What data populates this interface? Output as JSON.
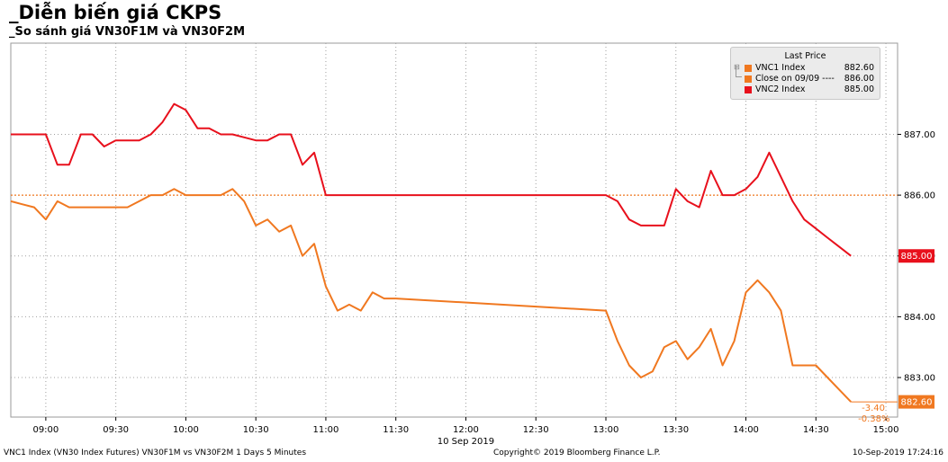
{
  "title": "_Diễn biến giá CKPS",
  "subtitle": "_So sánh giá VN30F1M và VN30F2M",
  "legend": {
    "header": "Last Price",
    "items": [
      {
        "label": "VNC1 Index",
        "value": "882.60",
        "color": "#f07820"
      },
      {
        "label": "Close on 09/09 ---- ",
        "value": "886.00",
        "color": "#f07820"
      },
      {
        "label": "VNC2 Index",
        "value": "885.00",
        "color": "#e8101c"
      }
    ]
  },
  "footer": {
    "left": "VNC1 Index (VN30 Index Futures) VN30F1M vs VN30F2M 1 Days 5 Minutes",
    "center": "Copyright© 2019 Bloomberg Finance L.P.",
    "right": "10-Sep-2019 17:24:16"
  },
  "chart_data": {
    "type": "line",
    "x_date": "10 Sep 2019",
    "x_tick_labels": [
      "09:00",
      "09:30",
      "10:00",
      "10:30",
      "11:00",
      "11:30",
      "12:00",
      "12:30",
      "13:00",
      "13:30",
      "14:00",
      "14:30",
      "15:00"
    ],
    "y_tick_labels": [
      "883.00",
      "884.00",
      "885.00",
      "886.00",
      "887.00"
    ],
    "y_ticks": [
      883,
      884,
      885,
      886,
      887
    ],
    "xlim": [
      "08:45",
      "15:05"
    ],
    "ylim": [
      882.35,
      888.5
    ],
    "grid": true,
    "reference_line": {
      "label": "Close on 09/09",
      "value": 886.0,
      "color": "#f07820"
    },
    "last_price_labels": [
      {
        "series": "VNC2 Index",
        "text": "885.00",
        "value": 885.0,
        "color": "#e8101c"
      },
      {
        "series": "VNC1 Index",
        "text": "882.60",
        "value": 882.6,
        "color": "#f07820"
      }
    ],
    "change_annotation": {
      "change": "-3.40",
      "percent": "-0.38%"
    },
    "series": [
      {
        "name": "VNC2 Index",
        "color": "#e8101c",
        "points": [
          [
            "08:45",
            887.0
          ],
          [
            "08:50",
            887.0
          ],
          [
            "08:55",
            887.0
          ],
          [
            "09:00",
            887.0
          ],
          [
            "09:05",
            886.5
          ],
          [
            "09:10",
            886.5
          ],
          [
            "09:15",
            887.0
          ],
          [
            "09:20",
            887.0
          ],
          [
            "09:25",
            886.8
          ],
          [
            "09:30",
            886.9
          ],
          [
            "09:35",
            886.9
          ],
          [
            "09:40",
            886.9
          ],
          [
            "09:45",
            887.0
          ],
          [
            "09:50",
            887.2
          ],
          [
            "09:55",
            887.5
          ],
          [
            "10:00",
            887.4
          ],
          [
            "10:05",
            887.1
          ],
          [
            "10:10",
            887.1
          ],
          [
            "10:15",
            887.0
          ],
          [
            "10:20",
            887.0
          ],
          [
            "10:25",
            886.95
          ],
          [
            "10:30",
            886.9
          ],
          [
            "10:35",
            886.9
          ],
          [
            "10:40",
            887.0
          ],
          [
            "10:45",
            887.0
          ],
          [
            "10:50",
            886.5
          ],
          [
            "10:55",
            886.7
          ],
          [
            "11:00",
            886.0
          ],
          [
            "11:30",
            886.0
          ],
          [
            "13:00",
            886.0
          ],
          [
            "13:05",
            885.9
          ],
          [
            "13:10",
            885.6
          ],
          [
            "13:15",
            885.5
          ],
          [
            "13:20",
            885.5
          ],
          [
            "13:25",
            885.5
          ],
          [
            "13:30",
            886.1
          ],
          [
            "13:35",
            885.9
          ],
          [
            "13:40",
            885.8
          ],
          [
            "13:45",
            886.4
          ],
          [
            "13:50",
            886.0
          ],
          [
            "13:55",
            886.0
          ],
          [
            "14:00",
            886.1
          ],
          [
            "14:05",
            886.3
          ],
          [
            "14:10",
            886.7
          ],
          [
            "14:15",
            886.3
          ],
          [
            "14:20",
            885.9
          ],
          [
            "14:25",
            885.6
          ],
          [
            "14:30",
            885.45
          ],
          [
            "14:35",
            885.3
          ],
          [
            "14:40",
            885.15
          ],
          [
            "14:45",
            885.0
          ]
        ]
      },
      {
        "name": "VNC1 Index",
        "color": "#f07820",
        "points": [
          [
            "08:45",
            885.9
          ],
          [
            "08:50",
            885.85
          ],
          [
            "08:55",
            885.8
          ],
          [
            "09:00",
            885.6
          ],
          [
            "09:05",
            885.9
          ],
          [
            "09:10",
            885.8
          ],
          [
            "09:15",
            885.8
          ],
          [
            "09:20",
            885.8
          ],
          [
            "09:25",
            885.8
          ],
          [
            "09:30",
            885.8
          ],
          [
            "09:35",
            885.8
          ],
          [
            "09:40",
            885.9
          ],
          [
            "09:45",
            886.0
          ],
          [
            "09:50",
            886.0
          ],
          [
            "09:55",
            886.1
          ],
          [
            "10:00",
            886.0
          ],
          [
            "10:05",
            886.0
          ],
          [
            "10:10",
            886.0
          ],
          [
            "10:15",
            886.0
          ],
          [
            "10:20",
            886.1
          ],
          [
            "10:25",
            885.9
          ],
          [
            "10:30",
            885.5
          ],
          [
            "10:35",
            885.6
          ],
          [
            "10:40",
            885.4
          ],
          [
            "10:45",
            885.5
          ],
          [
            "10:50",
            885.0
          ],
          [
            "10:55",
            885.2
          ],
          [
            "11:00",
            884.5
          ],
          [
            "11:05",
            884.1
          ],
          [
            "11:10",
            884.2
          ],
          [
            "11:15",
            884.1
          ],
          [
            "11:20",
            884.4
          ],
          [
            "11:25",
            884.3
          ],
          [
            "11:30",
            884.3
          ],
          [
            "13:00",
            884.1
          ],
          [
            "13:05",
            883.6
          ],
          [
            "13:10",
            883.2
          ],
          [
            "13:15",
            883.0
          ],
          [
            "13:20",
            883.1
          ],
          [
            "13:25",
            883.5
          ],
          [
            "13:30",
            883.6
          ],
          [
            "13:35",
            883.3
          ],
          [
            "13:40",
            883.5
          ],
          [
            "13:45",
            883.8
          ],
          [
            "13:50",
            883.2
          ],
          [
            "13:55",
            883.6
          ],
          [
            "14:00",
            884.4
          ],
          [
            "14:05",
            884.6
          ],
          [
            "14:10",
            884.4
          ],
          [
            "14:15",
            884.1
          ],
          [
            "14:20",
            883.2
          ],
          [
            "14:25",
            883.2
          ],
          [
            "14:30",
            883.2
          ],
          [
            "14:35",
            883.0
          ],
          [
            "14:40",
            882.8
          ],
          [
            "14:45",
            882.6
          ]
        ]
      }
    ]
  }
}
